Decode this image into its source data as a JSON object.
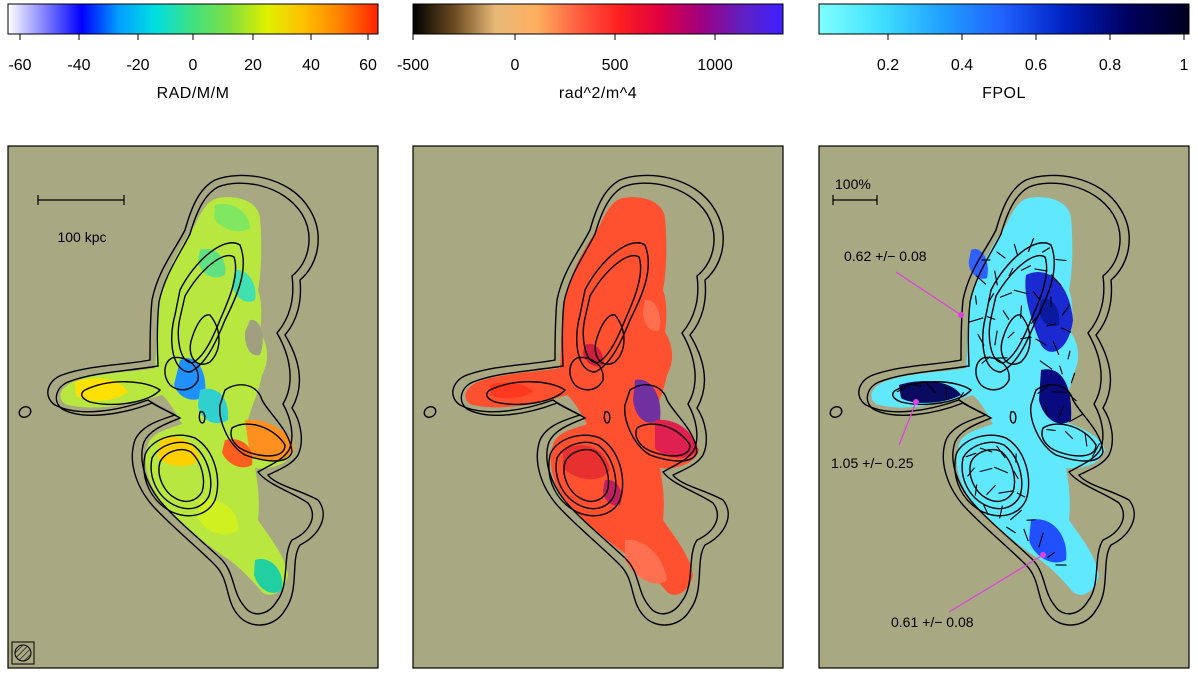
{
  "figure": {
    "background": "#ffffff",
    "panel_bg": "#a8a882",
    "contour_color": "#000000",
    "pointer_color": "#e040e0"
  },
  "colorbars": [
    {
      "label": "RAD/M/M",
      "tick_labels": [
        "-60",
        "-40",
        "-20",
        "0",
        "20",
        "40",
        "60"
      ],
      "colormap": "rainbow",
      "stops": [
        "#ffffff",
        "#8080ff",
        "#0000ff",
        "#00a0ff",
        "#00e0e0",
        "#40e080",
        "#80e040",
        "#e0f000",
        "#ffc000",
        "#ff8000",
        "#ff2000"
      ]
    },
    {
      "label": "rad^2/m^4",
      "tick_labels": [
        "-500",
        "0",
        "500",
        "1000"
      ],
      "colormap": "heat",
      "stops": [
        "#000000",
        "#6b4a20",
        "#e8b878",
        "#ffb060",
        "#ff6040",
        "#ff2020",
        "#e00040",
        "#a00080",
        "#6020c0",
        "#4020ff"
      ]
    },
    {
      "label": "FPOL",
      "tick_labels": [
        "0.2",
        "0.4",
        "0.6",
        "0.8",
        "1"
      ],
      "colormap": "blues",
      "stops": [
        "#80ffff",
        "#40e0ff",
        "#20a0ff",
        "#2060ff",
        "#0020c0",
        "#000060",
        "#000020"
      ]
    }
  ],
  "panels": [
    {
      "name": "rotation-measure",
      "scalebar_label": "100 kpc",
      "fill": "#b8e840"
    },
    {
      "name": "rm-dispersion",
      "fill": "#ff5030"
    },
    {
      "name": "fractional-polarization",
      "scalebar_label": "100%",
      "fill": "#60e8ff",
      "annotations": [
        "0.62 +/− 0.08",
        "1.05 +/− 0.25",
        "0.61 +/− 0.08"
      ]
    }
  ]
}
